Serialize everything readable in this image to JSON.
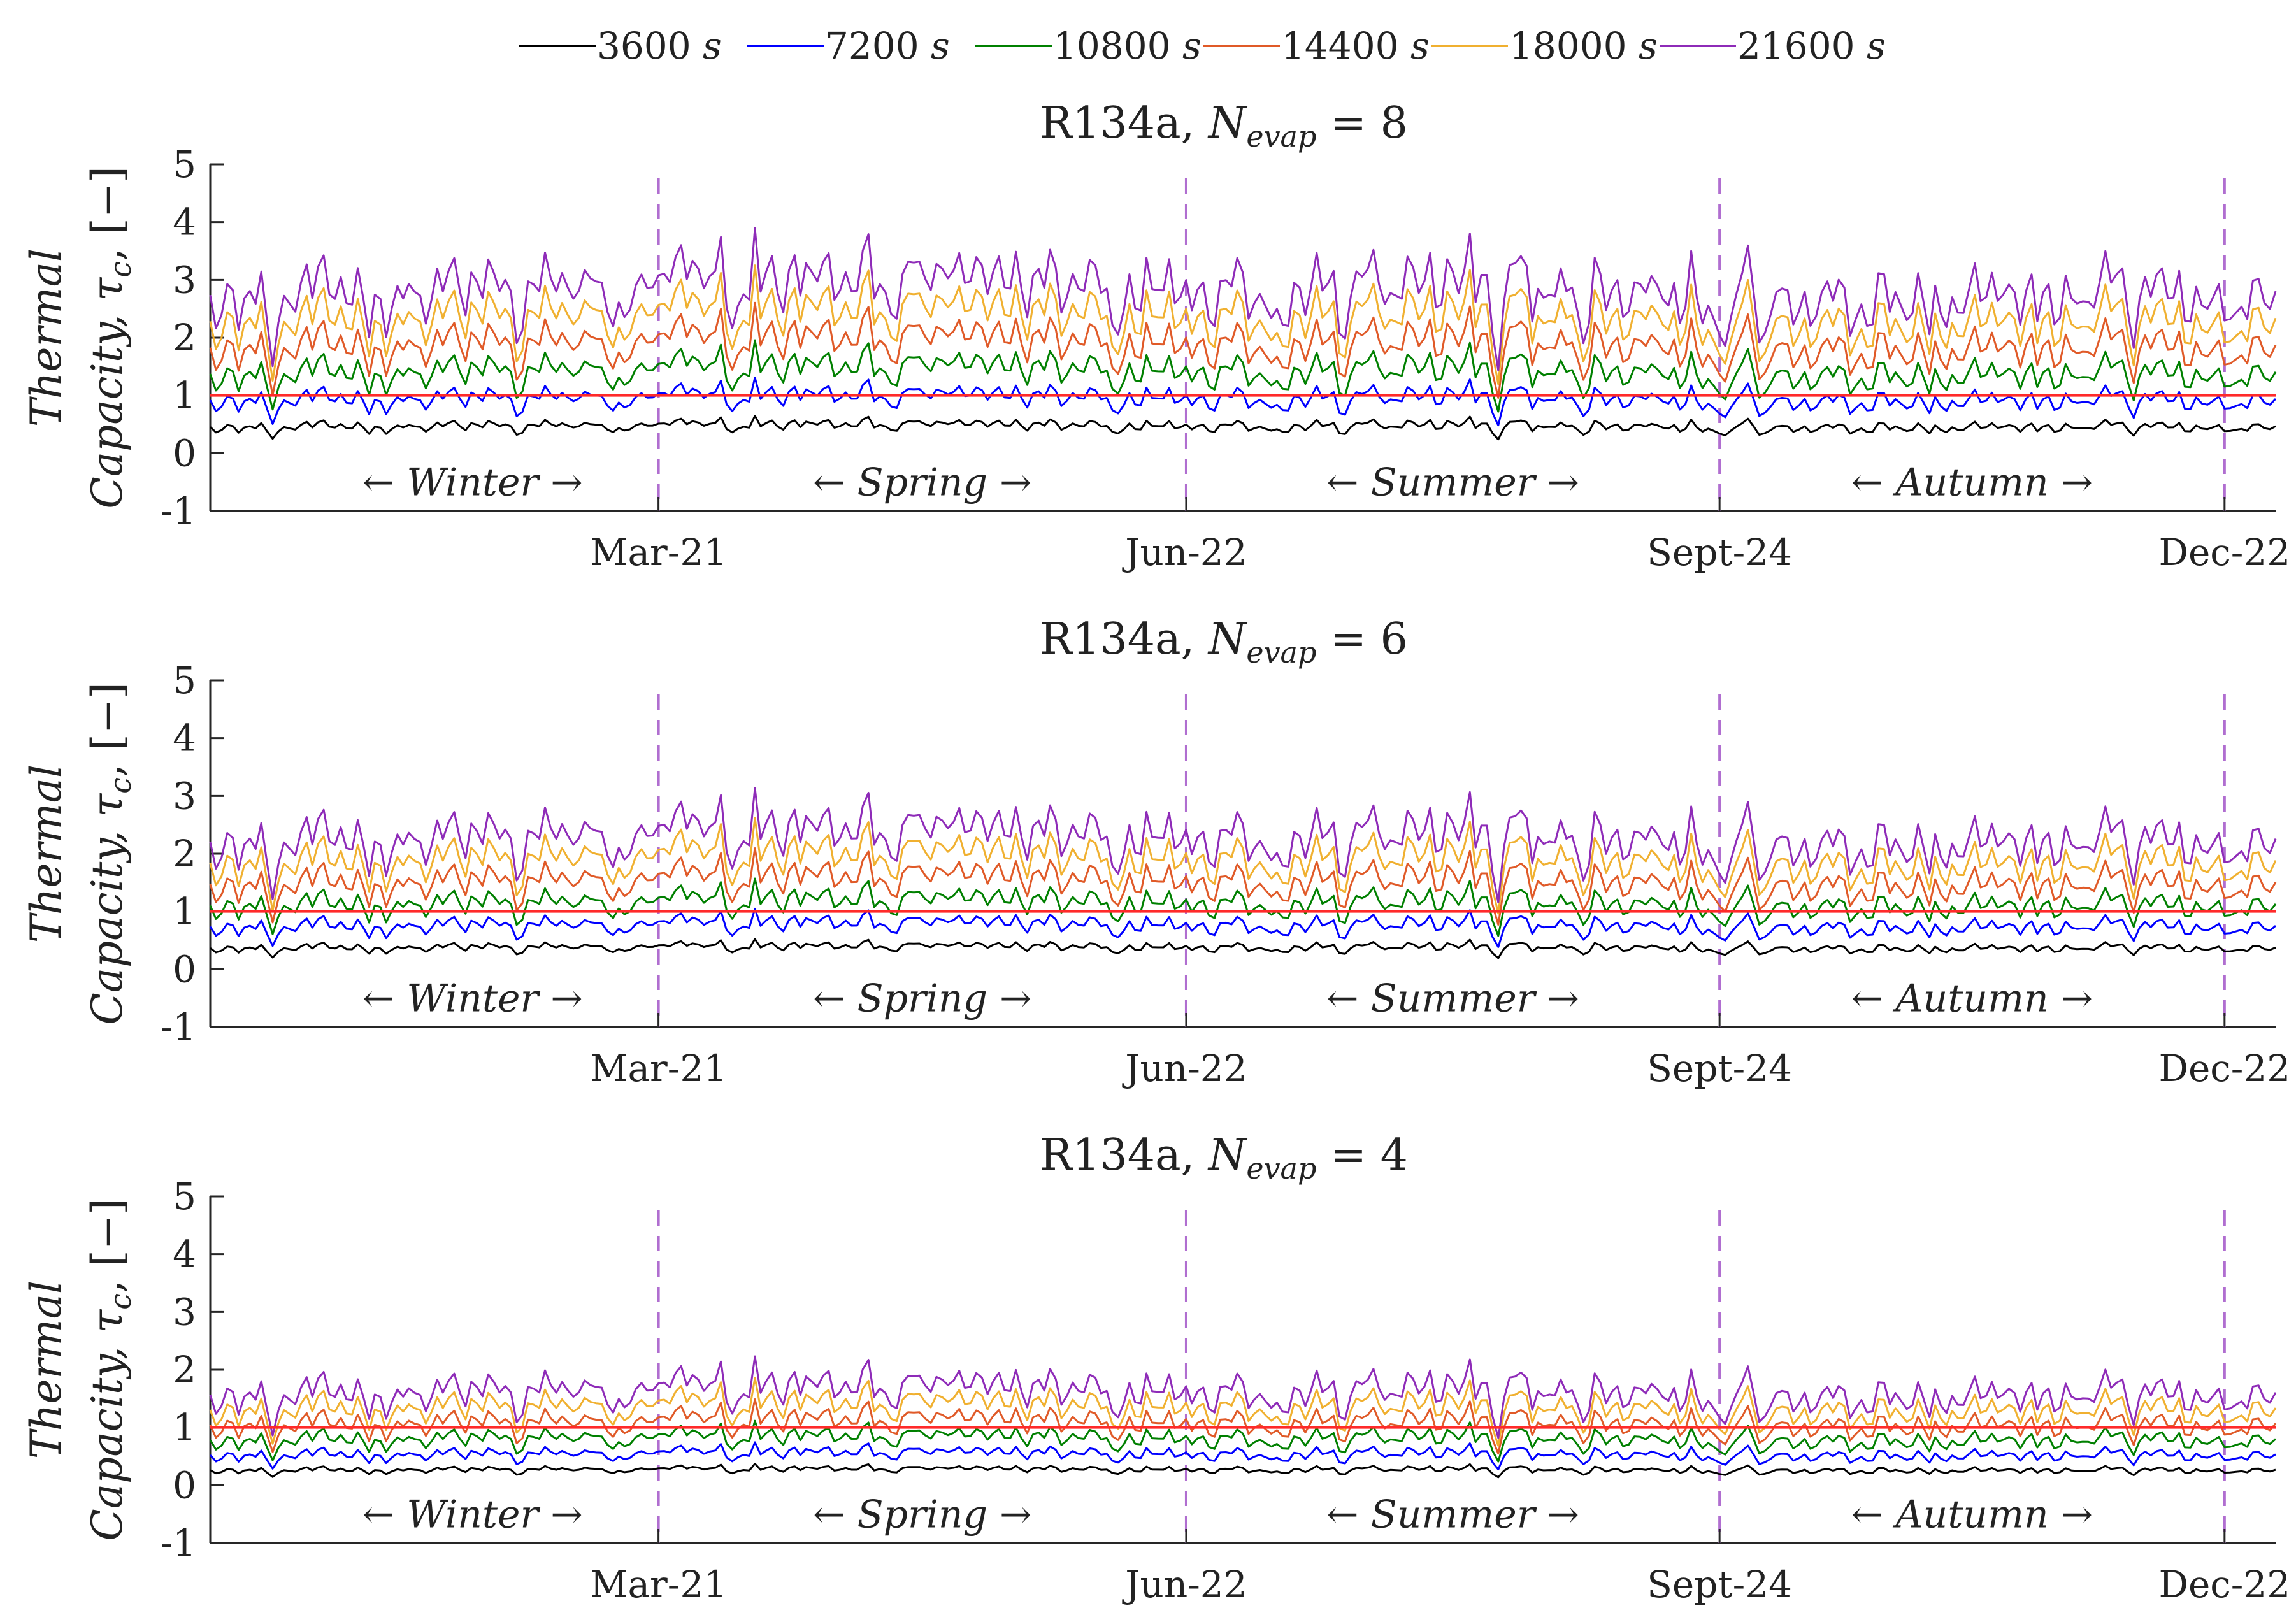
{
  "legend": {
    "items": [
      {
        "value": "3600",
        "unit": "s",
        "color": "#000000"
      },
      {
        "value": "7200",
        "unit": "s",
        "color": "#0000ff"
      },
      {
        "value": "10800",
        "unit": "s",
        "color": "#008000"
      },
      {
        "value": "14400",
        "unit": "s",
        "color": "#e05a28"
      },
      {
        "value": "18000",
        "unit": "s",
        "color": "#f0b030"
      },
      {
        "value": "21600",
        "unit": "s",
        "color": "#8e2bb8"
      }
    ]
  },
  "reference_line": {
    "y": 1,
    "color": "#ff2a2a"
  },
  "season_divider_color": "#b06ed0",
  "season_labels": [
    "← Winter →",
    "← Spring →",
    "← Summer →",
    "← Autumn →"
  ],
  "chart_data": [
    {
      "type": "line",
      "title": "R134a, N",
      "title_sub": "evap",
      "title_suffix": " = 8",
      "ylabel_line1": "Thermal",
      "ylabel_line2": "Capacity, τ",
      "ylabel_sub": "c",
      "ylabel_unit": ", [−]",
      "ylim": [
        -1,
        5
      ],
      "yticks": [
        -1,
        0,
        1,
        2,
        3,
        4,
        5
      ],
      "x_axis": {
        "type": "day-of-year",
        "range": [
          1,
          365
        ]
      },
      "xticks": [
        {
          "day": 80,
          "label": "Mar-21"
        },
        {
          "day": 173,
          "label": "Jun-22"
        },
        {
          "day": 267,
          "label": "Sept-24"
        },
        {
          "day": 356,
          "label": "Dec-22"
        }
      ],
      "season_dividers_day": [
        80,
        173,
        267,
        356
      ],
      "series_baseline": [
        {
          "name": "3600 s",
          "mean": 0.47
        },
        {
          "name": "7200 s",
          "mean": 0.95
        },
        {
          "name": "10800 s",
          "mean": 1.42
        },
        {
          "name": "14400 s",
          "mean": 1.89
        },
        {
          "name": "18000 s",
          "mean": 2.36
        },
        {
          "name": "21600 s",
          "mean": 2.83
        }
      ],
      "series_peak": {
        "name": "21600 s",
        "max": 4.1
      },
      "reference_value": 1
    },
    {
      "type": "line",
      "title": "R134a, N",
      "title_sub": "evap",
      "title_suffix": " = 6",
      "ylabel_line1": "Thermal",
      "ylabel_line2": "Capacity, τ",
      "ylabel_sub": "c",
      "ylabel_unit": ", [−]",
      "ylim": [
        -1,
        5
      ],
      "yticks": [
        -1,
        0,
        1,
        2,
        3,
        4,
        5
      ],
      "x_axis": {
        "type": "day-of-year",
        "range": [
          1,
          365
        ]
      },
      "xticks": [
        {
          "day": 80,
          "label": "Mar-21"
        },
        {
          "day": 173,
          "label": "Jun-22"
        },
        {
          "day": 267,
          "label": "Sept-24"
        },
        {
          "day": 356,
          "label": "Dec-22"
        }
      ],
      "season_dividers_day": [
        80,
        173,
        267,
        356
      ],
      "series_baseline": [
        {
          "name": "3600 s",
          "mean": 0.38
        },
        {
          "name": "7200 s",
          "mean": 0.76
        },
        {
          "name": "10800 s",
          "mean": 1.14
        },
        {
          "name": "14400 s",
          "mean": 1.52
        },
        {
          "name": "18000 s",
          "mean": 1.9
        },
        {
          "name": "21600 s",
          "mean": 2.28
        }
      ],
      "series_peak": {
        "name": "21600 s",
        "max": 3.3
      },
      "reference_value": 1
    },
    {
      "type": "line",
      "title": "R134a, N",
      "title_sub": "evap",
      "title_suffix": " = 4",
      "ylabel_line1": "Thermal",
      "ylabel_line2": "Capacity, τ",
      "ylabel_sub": "c",
      "ylabel_unit": ", [−]",
      "ylim": [
        -1,
        5
      ],
      "yticks": [
        -1,
        0,
        1,
        2,
        3,
        4,
        5
      ],
      "x_axis": {
        "type": "day-of-year",
        "range": [
          1,
          365
        ]
      },
      "xticks": [
        {
          "day": 80,
          "label": "Mar-21"
        },
        {
          "day": 173,
          "label": "Jun-22"
        },
        {
          "day": 267,
          "label": "Sept-24"
        },
        {
          "day": 356,
          "label": "Dec-22"
        }
      ],
      "season_dividers_day": [
        80,
        173,
        267,
        356
      ],
      "series_baseline": [
        {
          "name": "3600 s",
          "mean": 0.27
        },
        {
          "name": "7200 s",
          "mean": 0.54
        },
        {
          "name": "10800 s",
          "mean": 0.81
        },
        {
          "name": "14400 s",
          "mean": 1.08
        },
        {
          "name": "18000 s",
          "mean": 1.35
        },
        {
          "name": "21600 s",
          "mean": 1.62
        }
      ],
      "series_peak": {
        "name": "21600 s",
        "max": 2.45
      },
      "reference_value": 1
    }
  ]
}
